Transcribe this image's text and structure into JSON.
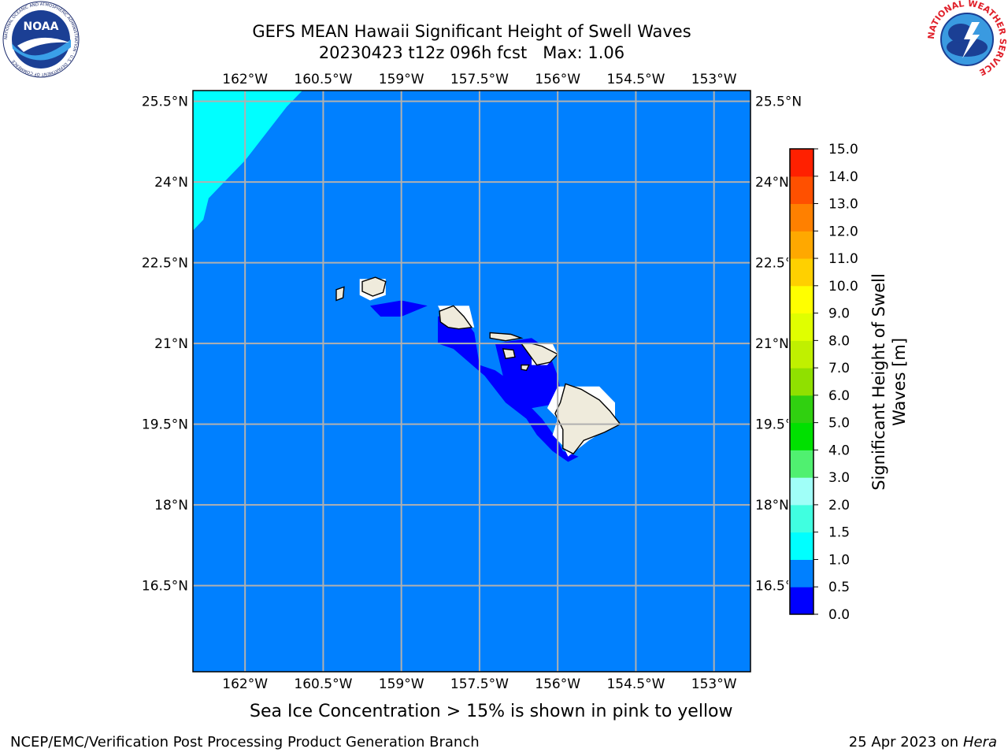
{
  "title": {
    "line1": "GEFS MEAN Hawaii Significant Height of Swell Waves",
    "line2": "20230423 t12z 096h fcst   Max: 1.06"
  },
  "map": {
    "lon_labels": [
      "162°W",
      "160.5°W",
      "159°W",
      "157.5°W",
      "156°W",
      "154.5°W",
      "153°W"
    ],
    "lat_labels": [
      "25.5°N",
      "24°N",
      "22.5°N",
      "21°N",
      "19.5°N",
      "18°N",
      "16.5°N"
    ],
    "lon_range": [
      -163,
      -152.3
    ],
    "lat_range": [
      14.9,
      25.7
    ],
    "grid": true,
    "colors": {
      "ocean_0_5_to_1": "#0080ff",
      "ocean_0_to_0_5": "#0000ff",
      "ocean_1_to_1_5": "#00ffff",
      "land": "#efebdc",
      "grid": "#b0b0b0"
    }
  },
  "colorbar": {
    "label_line1": "Significant Height of Swell",
    "label_line2": "Waves [m]",
    "ticks": [
      "0.0",
      "0.5",
      "1.0",
      "1.5",
      "2.0",
      "3.0",
      "4.0",
      "5.0",
      "6.0",
      "7.0",
      "8.0",
      "9.0",
      "10.0",
      "11.0",
      "12.0",
      "13.0",
      "14.0",
      "15.0"
    ],
    "colors": [
      "#0000ff",
      "#0080ff",
      "#00ffff",
      "#40ffe0",
      "#a0fff8",
      "#50f070",
      "#00e000",
      "#30d010",
      "#90e000",
      "#c0f000",
      "#e0ff00",
      "#ffff00",
      "#ffd000",
      "#ffa800",
      "#ff8000",
      "#ff5000",
      "#ff2000",
      "#ff0000"
    ]
  },
  "chart_data": {
    "type": "heatmap",
    "title": "GEFS MEAN Hawaii Significant Height of Swell Waves",
    "subtitle": "20230423 t12z 096h fcst   Max: 1.06",
    "colorbar_label": "Significant Height of Swell Waves [m]",
    "levels": [
      0.0,
      0.5,
      1.0,
      1.5,
      2.0,
      3.0,
      4.0,
      5.0,
      6.0,
      7.0,
      8.0,
      9.0,
      10.0,
      11.0,
      12.0,
      13.0,
      14.0,
      15.0
    ],
    "max": 1.06,
    "xlim": [
      -163,
      -152.3
    ],
    "ylim": [
      14.9,
      25.7
    ]
  },
  "caption": "Sea Ice Concentration > 15% is shown in pink to yellow",
  "footer": {
    "left": "NCEP/EMC/Verification Post Processing Product Generation Branch",
    "right_date": "25 Apr 2023 on ",
    "right_machine": "Hera"
  },
  "logos": {
    "noaa_text": "NOAA",
    "noaa_ring_text": "NATIONAL OCEANIC AND ATMOSPHERIC ADMINISTRATION · U.S. DEPARTMENT OF COMMERCE",
    "nws_ring_text": "NATIONAL WEATHER SERVICE"
  }
}
